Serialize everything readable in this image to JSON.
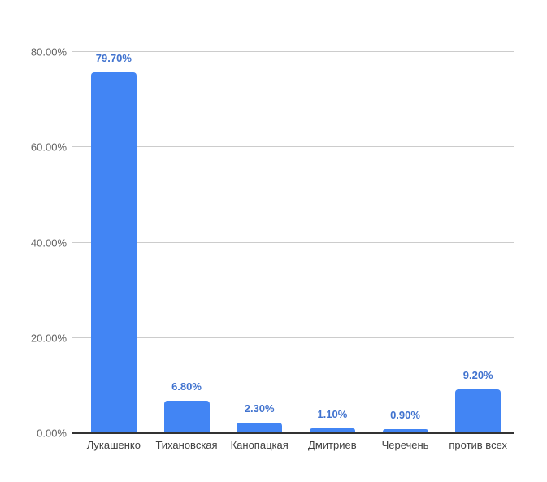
{
  "chart_data": {
    "type": "bar",
    "title": "",
    "xlabel": "",
    "ylabel": "",
    "categories": [
      "Лукашенко",
      "Тихановская",
      "Канопацкая",
      "Дмитриев",
      "Черечень",
      "против всех"
    ],
    "values": [
      79.7,
      6.8,
      2.3,
      1.1,
      0.9,
      9.2
    ],
    "data_labels": [
      "79.70%",
      "6.80%",
      "2.30%",
      "1.10%",
      "0.90%",
      "9.20%"
    ],
    "y_axis": {
      "tick_labels": [
        "0.00%",
        "20.00%",
        "40.00%",
        "60.00%",
        "80.00%"
      ],
      "tick_values": [
        0,
        20,
        40,
        60,
        80
      ]
    },
    "ylim": [
      0,
      90
    ],
    "grid": true,
    "legend": "none",
    "colors": {
      "bar": "#4285f4",
      "data_label": "#4173cf",
      "gridline": "#cccccc",
      "axis_line": "#333333",
      "y_tick_label": "#616161",
      "x_tick_label": "#404040",
      "background": "#ffffff"
    }
  }
}
